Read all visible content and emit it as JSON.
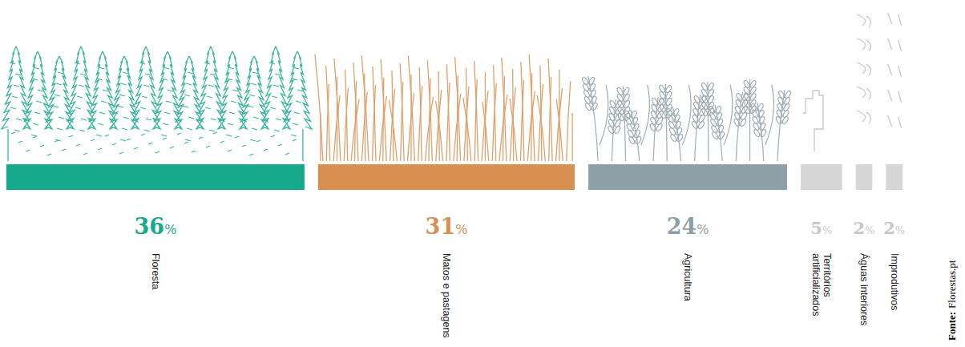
{
  "chart_data": {
    "type": "bar",
    "orientation": "horizontal",
    "categories": [
      "Floresta",
      "Matos e pastagens",
      "Agricultura",
      "Territórios artificializados",
      "Águas interiores",
      "Improdutivos"
    ],
    "values": [
      36,
      31,
      24,
      5,
      2,
      2
    ],
    "value_labels": [
      "36%",
      "31%",
      "24%",
      "5%",
      "2%",
      "2%"
    ],
    "colors": [
      "#16a98a",
      "#d98f50",
      "#8e9fa7",
      "#d6d6d6",
      "#d6d6d6",
      "#d6d6d6"
    ],
    "data_labels": true,
    "tick_labels": false,
    "source_label": "Fonte:",
    "source": "Florestas.pt"
  }
}
